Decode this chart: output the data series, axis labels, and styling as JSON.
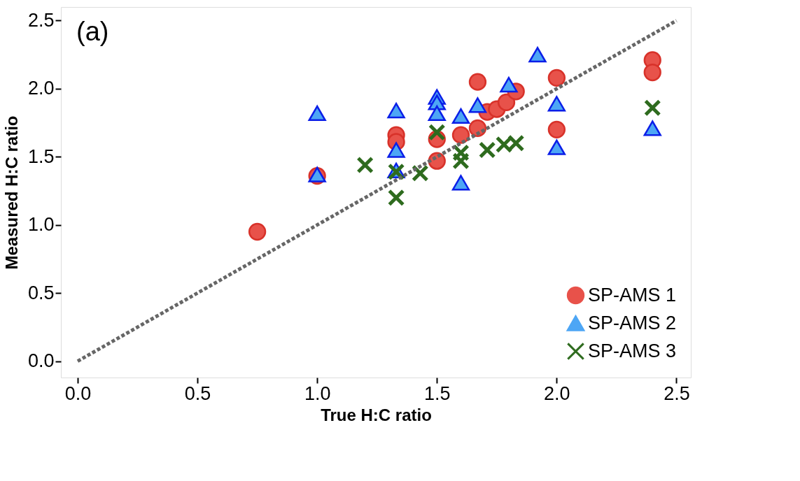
{
  "chart_data": {
    "type": "scatter",
    "xlabel": "True H:C ratio",
    "ylabel": "Measured H:C ratio",
    "annotations": [
      "(a)"
    ],
    "xlim": [
      -0.07,
      2.56
    ],
    "ylim": [
      -0.12,
      2.6
    ],
    "xticks": [
      {
        "value": 0,
        "label": "0.0"
      },
      0.5,
      {
        "value": 1,
        "label": "1.0"
      },
      1.5,
      {
        "value": 2,
        "label": "2.0"
      },
      2.5
    ],
    "yticks": [
      {
        "value": 0,
        "label": "0.0"
      },
      0.5,
      {
        "value": 1,
        "label": "1.0"
      },
      1.5,
      {
        "value": 2,
        "label": "2.0"
      },
      2.5
    ],
    "grid": false,
    "legend": "bottom right",
    "series": [
      {
        "name": "SP-AMS 1",
        "color": "#e8524a",
        "marker": "circle",
        "x": [
          0.75,
          1.0,
          1.33,
          1.33,
          1.5,
          1.5,
          1.6,
          1.67,
          1.67,
          1.71,
          1.75,
          1.79,
          1.83,
          2.0,
          2.0,
          2.4,
          2.4
        ],
        "values": [
          0.95,
          1.36,
          1.66,
          1.61,
          1.63,
          1.47,
          1.66,
          2.05,
          1.71,
          1.83,
          1.85,
          1.9,
          1.98,
          2.08,
          1.7,
          2.21,
          2.12
        ]
      },
      {
        "name": "SP-AMS 2",
        "color": "#4da6f5",
        "marker": "triangle",
        "x": [
          1.0,
          1.0,
          1.33,
          1.33,
          1.33,
          1.5,
          1.5,
          1.5,
          1.6,
          1.6,
          1.67,
          1.8,
          1.92,
          2.0,
          2.0,
          2.4
        ],
        "values": [
          1.82,
          1.37,
          1.84,
          1.55,
          1.4,
          1.94,
          1.9,
          1.82,
          1.8,
          1.31,
          1.88,
          2.03,
          2.25,
          1.89,
          1.57,
          1.71
        ]
      },
      {
        "name": "SP-AMS 3",
        "color": "#2e6b1e",
        "marker": "cross",
        "x": [
          1.2,
          1.33,
          1.33,
          1.43,
          1.5,
          1.6,
          1.6,
          1.71,
          1.78,
          1.83,
          2.4
        ],
        "values": [
          1.44,
          1.39,
          1.2,
          1.38,
          1.68,
          1.53,
          1.47,
          1.55,
          1.59,
          1.6,
          1.86
        ]
      },
      {
        "type": "line",
        "color": "#666666",
        "line_style": "dotted",
        "marker": "none",
        "x": [
          0.0,
          2.5
        ],
        "values": [
          0.0,
          2.5
        ]
      }
    ]
  }
}
